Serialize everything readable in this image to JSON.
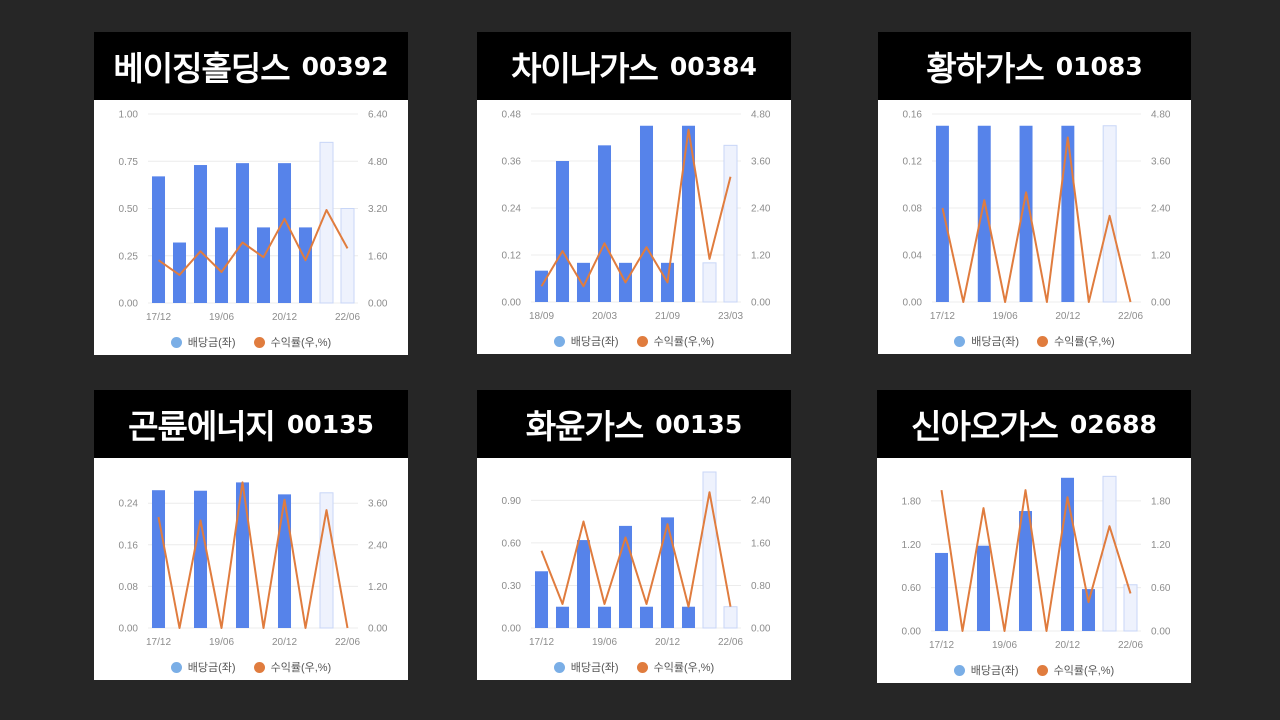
{
  "colors": {
    "bar": "#5683ea",
    "bar_forecast": "#eef2fd",
    "bar_forecast_border": "#c8d6f7",
    "line": "#e07c3e",
    "dividend_dot": "#7aaee6",
    "yield_dot": "#e07c3e",
    "grid": "#ececec",
    "axis_text": "#8c8c8c"
  },
  "legend": {
    "dividend": "배당금(좌)",
    "yield": "수익률(우,%)"
  },
  "chart_data": [
    {
      "type": "bar",
      "title": "베이징홀딩스",
      "code": "00392",
      "x_ticks": [
        "17/12",
        "19/06",
        "20/12",
        "22/06"
      ],
      "y_left_ticks": [
        "0.00",
        "0.25",
        "0.50",
        "0.75",
        "1.00"
      ],
      "y_right_ticks": [
        "0.00",
        "1.60",
        "3.20",
        "4.80",
        "6.40"
      ],
      "ylim_left": [
        0,
        1.0
      ],
      "ylim_right": [
        0,
        6.4
      ],
      "series": [
        {
          "name": "배당금(좌)",
          "values": [
            0.67,
            0.32,
            0.73,
            0.4,
            0.74,
            0.4,
            0.74,
            0.4,
            0.85,
            0.5
          ],
          "forecast_from": 8
        },
        {
          "name": "수익률(우,%)",
          "values": [
            1.45,
            0.95,
            1.75,
            1.05,
            2.05,
            1.55,
            2.85,
            1.45,
            3.15,
            1.85
          ]
        }
      ]
    },
    {
      "type": "bar",
      "title": "차이나가스",
      "code": "00384",
      "x_ticks": [
        "18/09",
        "20/03",
        "21/09",
        "23/03"
      ],
      "y_left_ticks": [
        "0.00",
        "0.12",
        "0.24",
        "0.36",
        "0.48"
      ],
      "y_right_ticks": [
        "0.00",
        "1.20",
        "2.40",
        "3.60",
        "4.80"
      ],
      "ylim_left": [
        0,
        0.48
      ],
      "ylim_right": [
        0,
        4.8
      ],
      "series": [
        {
          "name": "배당금(좌)",
          "values": [
            0.08,
            0.36,
            0.1,
            0.4,
            0.1,
            0.45,
            0.1,
            0.45,
            0.1,
            0.4
          ],
          "forecast_from": 8
        },
        {
          "name": "수익률(우,%)",
          "values": [
            0.4,
            1.3,
            0.4,
            1.5,
            0.5,
            1.4,
            0.5,
            4.4,
            1.1,
            3.2
          ]
        }
      ]
    },
    {
      "type": "bar",
      "title": "황하가스",
      "code": "01083",
      "x_ticks": [
        "17/12",
        "19/06",
        "20/12",
        "22/06"
      ],
      "y_left_ticks": [
        "0.00",
        "0.04",
        "0.08",
        "0.12",
        "0.16"
      ],
      "y_right_ticks": [
        "0.00",
        "1.20",
        "2.40",
        "3.60",
        "4.80"
      ],
      "ylim_left": [
        0,
        0.16
      ],
      "ylim_right": [
        0,
        4.8
      ],
      "series": [
        {
          "name": "배당금(좌)",
          "values": [
            0.15,
            0,
            0.15,
            0,
            0.15,
            0,
            0.15,
            0,
            0.15,
            0
          ],
          "forecast_from": 8
        },
        {
          "name": "수익률(우,%)",
          "values": [
            2.4,
            0,
            2.6,
            0,
            2.8,
            0,
            4.2,
            0,
            2.2,
            0
          ]
        }
      ]
    },
    {
      "type": "bar",
      "title": "곤륜에너지",
      "code": "00135",
      "x_ticks": [
        "17/12",
        "19/06",
        "20/12",
        "22/06"
      ],
      "y_left_ticks": [
        "0.00",
        "0.08",
        "0.16",
        "0.24"
      ],
      "y_right_ticks": [
        "0.00",
        "1.20",
        "2.40",
        "3.60"
      ],
      "ylim_left": [
        0,
        0.3
      ],
      "ylim_right": [
        0,
        4.5
      ],
      "series": [
        {
          "name": "배당금(좌)",
          "values": [
            0.265,
            0,
            0.264,
            0,
            0.28,
            0,
            0.257,
            0,
            0.26,
            0
          ],
          "forecast_from": 8
        },
        {
          "name": "수익률(우,%)",
          "values": [
            3.2,
            0,
            3.1,
            0,
            4.2,
            0,
            3.7,
            0,
            3.4,
            0
          ]
        }
      ]
    },
    {
      "type": "bar",
      "title": "화윤가스",
      "code": "00135",
      "x_ticks": [
        "17/12",
        "19/06",
        "20/12",
        "22/06"
      ],
      "y_left_ticks": [
        "0.00",
        "0.30",
        "0.60",
        "0.90"
      ],
      "y_right_ticks": [
        "0.00",
        "0.80",
        "1.60",
        "2.40"
      ],
      "ylim_left": [
        0,
        1.1
      ],
      "ylim_right": [
        0,
        2.93
      ],
      "series": [
        {
          "name": "배당금(좌)",
          "values": [
            0.4,
            0.15,
            0.62,
            0.15,
            0.72,
            0.15,
            0.78,
            0.15,
            1.1,
            0.15
          ],
          "forecast_from": 8
        },
        {
          "name": "수익률(우,%)",
          "values": [
            1.45,
            0.45,
            2.0,
            0.45,
            1.7,
            0.45,
            1.95,
            0.4,
            2.55,
            0.4
          ]
        }
      ]
    },
    {
      "type": "bar",
      "title": "신아오가스",
      "code": "02688",
      "x_ticks": [
        "17/12",
        "19/06",
        "20/12",
        "22/06"
      ],
      "y_left_ticks": [
        "0.00",
        "0.60",
        "1.20",
        "1.80"
      ],
      "y_right_ticks": [
        "0.00",
        "0.60",
        "1.20",
        "1.80"
      ],
      "ylim_left": [
        0,
        2.2
      ],
      "ylim_right": [
        0,
        2.2
      ],
      "series": [
        {
          "name": "배당금(좌)",
          "values": [
            1.08,
            0,
            1.18,
            0,
            1.66,
            0,
            2.12,
            0.58,
            2.14,
            0.64
          ],
          "forecast_from": 8
        },
        {
          "name": "수익률(우,%)",
          "values": [
            1.95,
            0,
            1.7,
            0,
            1.95,
            0,
            1.85,
            0.4,
            1.45,
            0.52
          ]
        }
      ]
    }
  ]
}
